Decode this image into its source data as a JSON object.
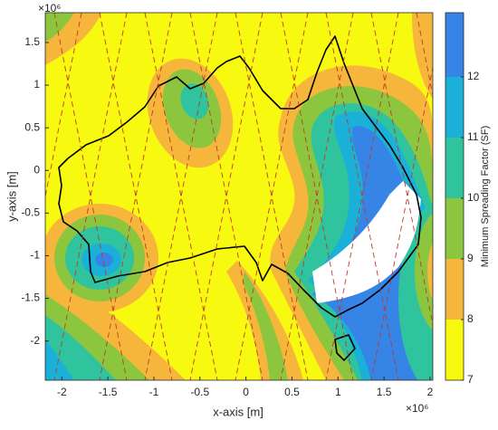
{
  "chart_data": {
    "type": "heatmap",
    "x_label": "x-axis [m]",
    "y_label": "y-axis [m]",
    "x_exponent": "×10⁶",
    "y_exponent": "×10⁶",
    "xlim": [
      -2.18,
      2.03
    ],
    "xticks": [
      -2,
      -1.5,
      -1,
      -0.5,
      0,
      0.5,
      1,
      1.5,
      2
    ],
    "ylim": [
      -2.46,
      1.85
    ],
    "yticks": [
      -2,
      -1.5,
      -1,
      -0.5,
      0,
      0.5,
      1,
      1.5
    ],
    "colorbar": {
      "label": "Minimum Spreading Factor (SF)",
      "clim": [
        7,
        13.06
      ],
      "ticks": [
        7,
        8,
        9,
        10,
        11,
        12
      ],
      "colors": [
        "#f8f910",
        "#f6b63c",
        "#8cc63f",
        "#2fc49e",
        "#1ab0d8",
        "#3584e6"
      ]
    }
  }
}
